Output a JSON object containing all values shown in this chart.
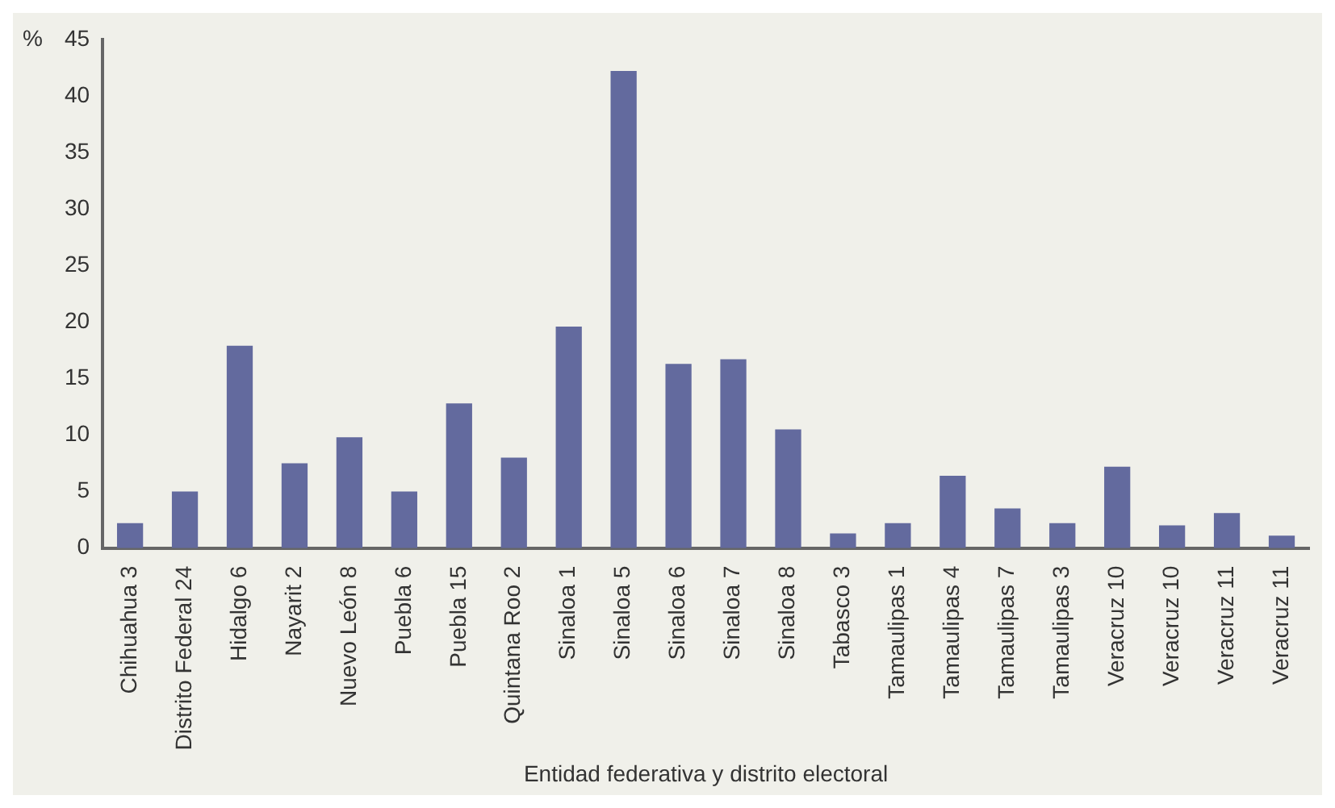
{
  "chart_data": {
    "type": "bar",
    "ylabel": "%",
    "xlabel": "Entidad federativa y distrito electoral",
    "categories": [
      "Chihuahua 3",
      "Distrito Federal 24",
      "Hidalgo 6",
      "Nayarit 2",
      "Nuevo León 8",
      "Puebla 6",
      "Puebla 15",
      "Quintana Roo 2",
      "Sinaloa 1",
      "Sinaloa 5",
      "Sinaloa 6",
      "Sinaloa 7",
      "Sinaloa 8",
      "Tabasco 3",
      "Tamaulipas 1",
      "Tamaulipas 4",
      "Tamaulipas 7",
      "Tamaulipas 3",
      "Veracruz 10",
      "Veracruz 10",
      "Veracruz 11",
      "Veracruz 11"
    ],
    "values": [
      2.2,
      5.0,
      17.9,
      7.5,
      9.8,
      5.0,
      12.8,
      8.0,
      19.6,
      42.2,
      16.3,
      16.7,
      10.5,
      1.3,
      2.2,
      6.4,
      3.5,
      2.2,
      7.2,
      2.0,
      3.1,
      1.1
    ],
    "color": "#636a9e",
    "ylim": [
      0,
      45
    ],
    "yticks": [
      0,
      5,
      10,
      15,
      20,
      25,
      30,
      35,
      40,
      45
    ],
    "grid": false,
    "legend": false
  }
}
